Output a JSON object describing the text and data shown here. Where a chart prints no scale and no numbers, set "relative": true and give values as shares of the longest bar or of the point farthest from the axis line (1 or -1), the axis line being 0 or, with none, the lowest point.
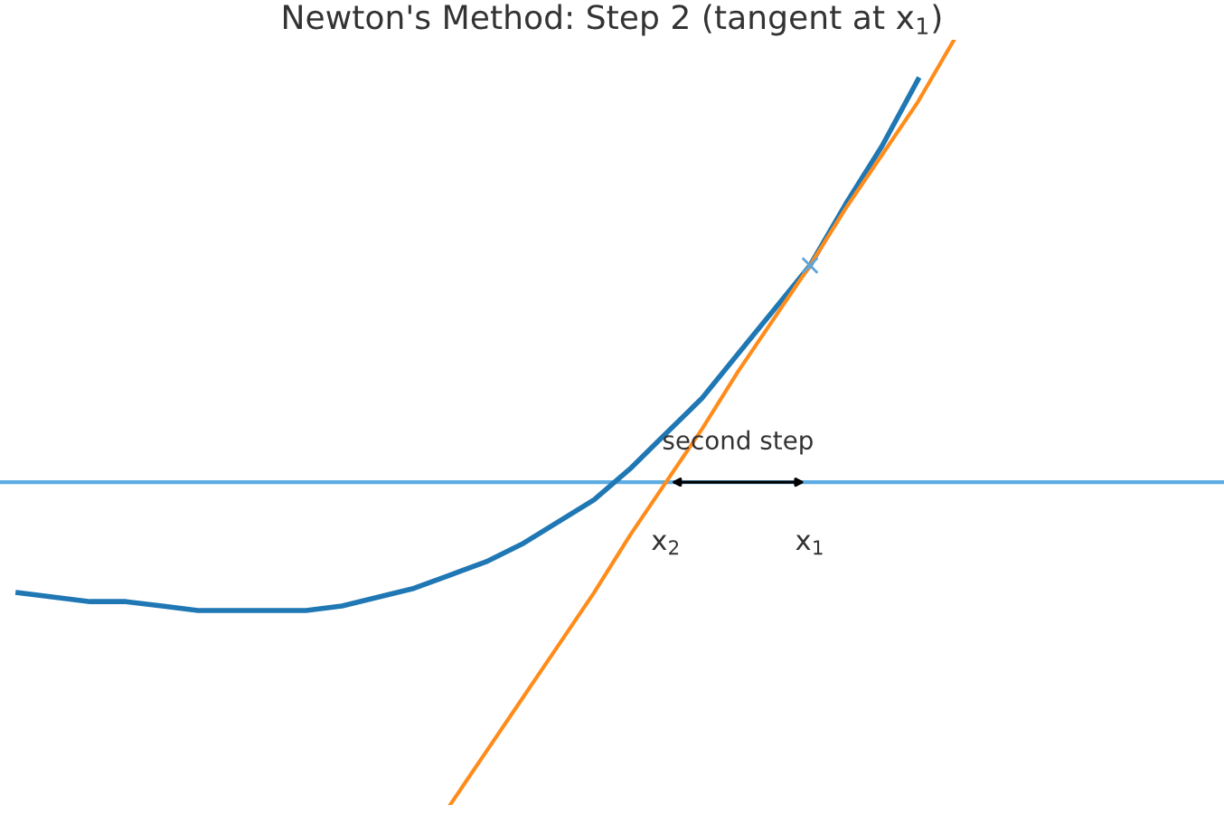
{
  "chart_data": {
    "type": "line",
    "title": "Newton's Method: Step 2 (tangent at x$_{1}$)",
    "relative": true,
    "categories": [
      null,
      null,
      null,
      null,
      null,
      null,
      null,
      null,
      null,
      null,
      null,
      null,
      null,
      null,
      null,
      null,
      null,
      null,
      null,
      null,
      null,
      null,
      null,
      null,
      null,
      null,
      null,
      null,
      null,
      null,
      null,
      null,
      null,
      null
    ],
    "series": [
      {
        "color": "#1f77b4",
        "values": [
          -0.25,
          -0.26,
          -0.27,
          -0.27,
          -0.28,
          -0.29,
          -0.29,
          -0.29,
          -0.29,
          -0.28,
          -0.26,
          -0.24,
          -0.21,
          -0.18,
          -0.14,
          -0.09,
          -0.04,
          0.03,
          0.11,
          0.19,
          0.29,
          0.39,
          0.49,
          0.63,
          0.76,
          0.91,
          null,
          null,
          null,
          null,
          null,
          null,
          null,
          null
        ]
      },
      {
        "color": "#ff8c1a",
        "values": [
          null,
          null,
          null,
          null,
          null,
          null,
          null,
          null,
          null,
          null,
          null,
          null,
          -0.73,
          -0.61,
          -0.49,
          -0.37,
          -0.25,
          -0.12,
          0,
          0.12,
          0.25,
          0.37,
          0.49,
          0.62,
          0.74,
          0.86,
          1,
          null,
          null,
          null,
          null,
          null,
          null,
          null
        ]
      }
    ],
    "ref_lines": [
      {
        "axis": "y",
        "value": 0,
        "color": "#5dade2"
      }
    ],
    "annotations": [
      "second step",
      "x$_{2}$",
      "x$_{1}$"
    ]
  }
}
